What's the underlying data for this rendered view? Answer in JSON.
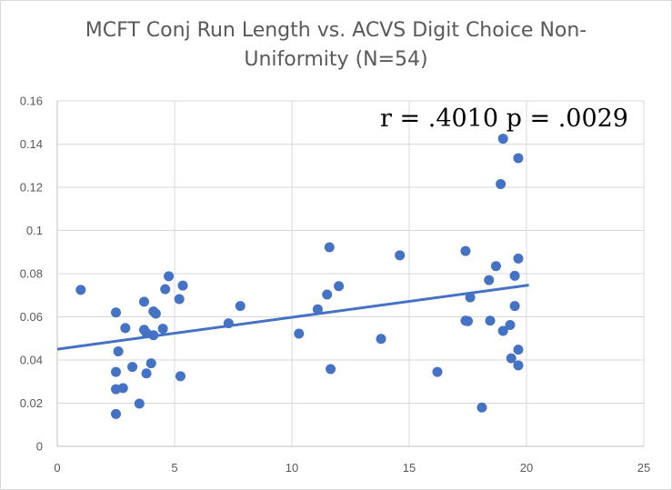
{
  "chart_data": {
    "type": "scatter",
    "title_lines": [
      "MCFT Conj Run Length vs. ACVS Digit Choice Non-",
      "Uniformity (N=54)"
    ],
    "annotation": "r = .4010 p = .0029",
    "xlim": [
      0,
      25
    ],
    "ylim": [
      0,
      0.16
    ],
    "x_ticks": [
      "0",
      "5",
      "10",
      "15",
      "20",
      "25"
    ],
    "y_ticks": [
      "0",
      "0.02",
      "0.04",
      "0.06",
      "0.08",
      "0.1",
      "0.12",
      "0.14",
      "0.16"
    ],
    "grid": true,
    "legend": "none",
    "marker_color": "#4472c4",
    "trendline": {
      "type": "linear",
      "x": [
        0,
        20.1
      ],
      "y": [
        0.045,
        0.0747
      ],
      "color": "#4472c4"
    },
    "points": [
      [
        1.0,
        0.0725
      ],
      [
        2.5,
        0.062
      ],
      [
        2.6,
        0.044
      ],
      [
        2.5,
        0.0345
      ],
      [
        2.5,
        0.0265
      ],
      [
        2.8,
        0.027
      ],
      [
        2.5,
        0.015
      ],
      [
        2.9,
        0.0548
      ],
      [
        3.2,
        0.0368
      ],
      [
        3.5,
        0.0198
      ],
      [
        3.7,
        0.054
      ],
      [
        3.7,
        0.067
      ],
      [
        3.8,
        0.0525
      ],
      [
        3.8,
        0.0338
      ],
      [
        4.0,
        0.0385
      ],
      [
        4.1,
        0.0625
      ],
      [
        4.2,
        0.0615
      ],
      [
        4.1,
        0.0515
      ],
      [
        4.5,
        0.0545
      ],
      [
        4.6,
        0.0728
      ],
      [
        4.75,
        0.0788
      ],
      [
        5.2,
        0.0682
      ],
      [
        5.35,
        0.0745
      ],
      [
        5.25,
        0.0325
      ],
      [
        7.3,
        0.057
      ],
      [
        7.8,
        0.065
      ],
      [
        10.3,
        0.0522
      ],
      [
        11.1,
        0.0635
      ],
      [
        11.5,
        0.0703
      ],
      [
        11.6,
        0.0922
      ],
      [
        11.65,
        0.0358
      ],
      [
        12.0,
        0.0742
      ],
      [
        13.8,
        0.0498
      ],
      [
        14.6,
        0.0885
      ],
      [
        16.2,
        0.0345
      ],
      [
        17.4,
        0.0905
      ],
      [
        17.4,
        0.0582
      ],
      [
        17.6,
        0.069
      ],
      [
        18.1,
        0.018
      ],
      [
        18.4,
        0.077
      ],
      [
        18.45,
        0.0582
      ],
      [
        18.7,
        0.0835
      ],
      [
        18.9,
        0.1215
      ],
      [
        19.0,
        0.1425
      ],
      [
        19.0,
        0.0535
      ],
      [
        19.3,
        0.0562
      ],
      [
        19.35,
        0.0408
      ],
      [
        19.5,
        0.079
      ],
      [
        19.5,
        0.065
      ],
      [
        19.65,
        0.1335
      ],
      [
        19.65,
        0.087
      ],
      [
        19.65,
        0.0448
      ],
      [
        19.65,
        0.0375
      ],
      [
        17.5,
        0.058
      ]
    ]
  }
}
